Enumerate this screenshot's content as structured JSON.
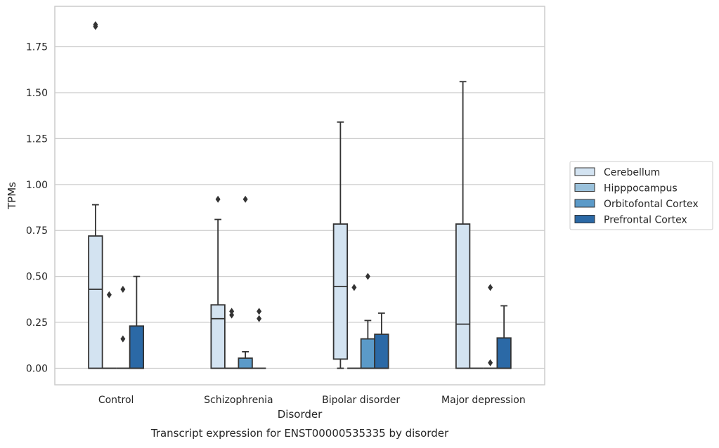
{
  "chart_data": {
    "type": "box",
    "caption": "Transcript expression for ENST00000535335 by disorder",
    "xlabel": "Disorder",
    "ylabel": "TPMs",
    "ylim": [
      -0.09,
      1.97
    ],
    "yticks": [
      "0.00",
      "0.25",
      "0.50",
      "0.75",
      "1.00",
      "1.25",
      "1.50",
      "1.75"
    ],
    "grid": true,
    "legend_position": "right",
    "categories": [
      "Control",
      "Schizophrenia",
      "Bipolar disorder",
      "Major depression"
    ],
    "series": [
      {
        "name": "Cerebellum",
        "color": "#d3e3f1",
        "boxes": [
          {
            "whislo": 0.0,
            "q1": 0.0,
            "med": 0.43,
            "q3": 0.72,
            "whishi": 0.89,
            "fliers": [
              1.86,
              1.87
            ]
          },
          {
            "whislo": 0.0,
            "q1": 0.0,
            "med": 0.27,
            "q3": 0.345,
            "whishi": 0.81,
            "fliers": [
              0.92
            ]
          },
          {
            "whislo": 0.0,
            "q1": 0.05,
            "med": 0.445,
            "q3": 0.785,
            "whishi": 1.34,
            "fliers": []
          },
          {
            "whislo": 0.0,
            "q1": 0.0,
            "med": 0.24,
            "q3": 0.785,
            "whishi": 1.56,
            "fliers": []
          }
        ]
      },
      {
        "name": "Hipppocampus",
        "color": "#9ac1db",
        "boxes": [
          {
            "whislo": 0.0,
            "q1": 0.0,
            "med": 0.0,
            "q3": 0.0,
            "whishi": 0.0,
            "fliers": [
              0.4
            ]
          },
          {
            "whislo": 0.0,
            "q1": 0.0,
            "med": 0.0,
            "q3": 0.0,
            "whishi": 0.0,
            "fliers": [
              0.29,
              0.31
            ]
          },
          {
            "whislo": 0.0,
            "q1": 0.0,
            "med": 0.0,
            "q3": 0.0,
            "whishi": 0.0,
            "fliers": [
              0.44
            ]
          },
          {
            "whislo": 0.0,
            "q1": 0.0,
            "med": 0.0,
            "q3": 0.0,
            "whishi": 0.0,
            "fliers": []
          }
        ]
      },
      {
        "name": "Orbitofontal Cortex",
        "color": "#5b9ac8",
        "boxes": [
          {
            "whislo": 0.0,
            "q1": 0.0,
            "med": 0.0,
            "q3": 0.0,
            "whishi": 0.0,
            "fliers": [
              0.16,
              0.43
            ]
          },
          {
            "whislo": 0.0,
            "q1": 0.0,
            "med": 0.0,
            "q3": 0.055,
            "whishi": 0.09,
            "fliers": [
              0.92
            ]
          },
          {
            "whislo": 0.0,
            "q1": 0.0,
            "med": 0.0,
            "q3": 0.16,
            "whishi": 0.26,
            "fliers": [
              0.5
            ]
          },
          {
            "whislo": 0.0,
            "q1": 0.0,
            "med": 0.0,
            "q3": 0.0,
            "whishi": 0.0,
            "fliers": [
              0.03,
              0.44
            ]
          }
        ]
      },
      {
        "name": "Prefrontal Cortex",
        "color": "#2b69a6",
        "boxes": [
          {
            "whislo": 0.0,
            "q1": 0.0,
            "med": 0.0,
            "q3": 0.23,
            "whishi": 0.5,
            "fliers": []
          },
          {
            "whislo": 0.0,
            "q1": 0.0,
            "med": 0.0,
            "q3": 0.0,
            "whishi": 0.0,
            "fliers": [
              0.27,
              0.31
            ]
          },
          {
            "whislo": 0.0,
            "q1": 0.0,
            "med": 0.0,
            "q3": 0.185,
            "whishi": 0.3,
            "fliers": []
          },
          {
            "whislo": 0.0,
            "q1": 0.0,
            "med": 0.0,
            "q3": 0.165,
            "whishi": 0.34,
            "fliers": []
          }
        ]
      }
    ]
  }
}
